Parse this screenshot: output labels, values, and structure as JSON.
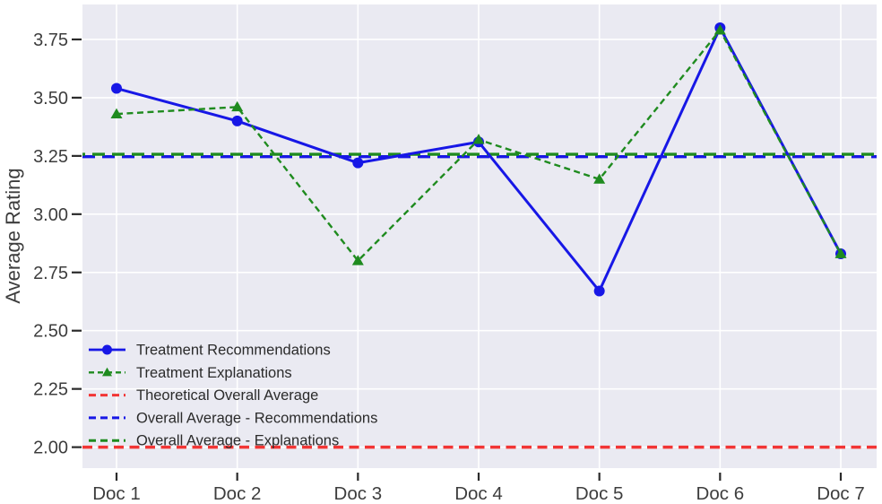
{
  "chart_data": {
    "type": "line",
    "title": "",
    "xlabel": "",
    "ylabel": "Average Rating",
    "categories": [
      "Doc 1",
      "Doc 2",
      "Doc 3",
      "Doc 4",
      "Doc 5",
      "Doc 6",
      "Doc 7"
    ],
    "series": [
      {
        "name": "Treatment Recommendations",
        "color": "#1717e6",
        "line_style": "solid",
        "marker": "circle",
        "values": [
          3.54,
          3.4,
          3.22,
          3.31,
          2.67,
          3.8,
          2.83
        ]
      },
      {
        "name": "Treatment Explanations",
        "color": "#1f8b1f",
        "line_style": "dashed",
        "marker": "triangle",
        "values": [
          3.43,
          3.46,
          2.8,
          3.32,
          3.15,
          3.79,
          2.83
        ]
      }
    ],
    "reference_lines": [
      {
        "name": "Theoretical Overall Average",
        "value": 2.0,
        "color": "#f23535",
        "line_style": "dashed"
      },
      {
        "name": "Overall Average - Recommendations",
        "value": 3.247,
        "color": "#1717e6",
        "line_style": "dashed"
      },
      {
        "name": "Overall Average - Explanations",
        "value": 3.257,
        "color": "#1f8b1f",
        "line_style": "dashed"
      }
    ],
    "legend": [
      "Treatment Recommendations",
      "Treatment Explanations",
      "Theoretical Overall Average",
      "Overall Average - Recommendations",
      "Overall Average - Explanations"
    ],
    "legend_position": "lower left",
    "yticks": [
      "2.00",
      "2.25",
      "2.50",
      "2.75",
      "3.00",
      "3.25",
      "3.50",
      "3.75"
    ],
    "ylim": [
      1.91,
      3.9
    ],
    "grid": true,
    "plot_background": "#eaeaf2",
    "grid_color": "#ffffff",
    "tick_color": "#2b2b2b",
    "text_color": "#3d3d3d"
  }
}
